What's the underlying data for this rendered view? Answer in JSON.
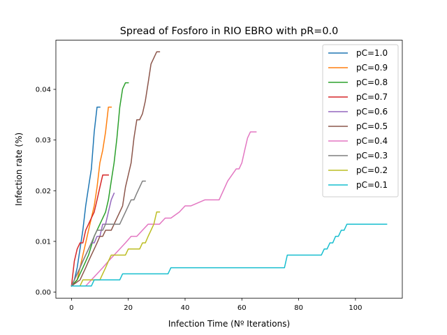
{
  "chart_data": {
    "type": "line",
    "title": "Spread of Fosforo in RIO EBRO with pR=0.0",
    "xlabel": "Infection Time (Nº Iterations)",
    "ylabel": "Infection rate (%)",
    "xlim": [
      -5.5,
      116.5
    ],
    "ylim": [
      -0.0012,
      0.0497
    ],
    "x_ticks": [
      0,
      20,
      40,
      60,
      80,
      100
    ],
    "x_tick_labels": [
      "0",
      "20",
      "40",
      "60",
      "80",
      "100"
    ],
    "y_ticks": [
      0.0,
      0.01,
      0.02,
      0.03,
      0.04
    ],
    "y_tick_labels": [
      "0.00",
      "0.01",
      "0.02",
      "0.03",
      "0.04"
    ],
    "grid": false,
    "legend_position": "top-right",
    "series": [
      {
        "name": "pC=1.0",
        "color": "#1f77b4",
        "x": [
          0,
          1,
          2,
          3,
          4,
          5,
          6,
          7,
          8,
          9,
          10
        ],
        "y": [
          0.0012,
          0.0024,
          0.0048,
          0.0085,
          0.0122,
          0.017,
          0.0207,
          0.0243,
          0.0316,
          0.0365,
          0.0365
        ]
      },
      {
        "name": "pC=0.9",
        "color": "#ff7f0e",
        "x": [
          0,
          2,
          3,
          4,
          5,
          6,
          7,
          8,
          9,
          10,
          11,
          12,
          13,
          14
        ],
        "y": [
          0.0012,
          0.0024,
          0.0048,
          0.0073,
          0.0097,
          0.0122,
          0.0146,
          0.017,
          0.0207,
          0.0255,
          0.028,
          0.0316,
          0.0365,
          0.0365
        ]
      },
      {
        "name": "pC=0.8",
        "color": "#2ca02c",
        "x": [
          0,
          2,
          4,
          6,
          8,
          10,
          12,
          13,
          14,
          15,
          16,
          17,
          18,
          19,
          20
        ],
        "y": [
          0.0012,
          0.0024,
          0.0048,
          0.0073,
          0.011,
          0.0134,
          0.0158,
          0.0182,
          0.0219,
          0.0255,
          0.0304,
          0.0365,
          0.0401,
          0.0413,
          0.0413
        ]
      },
      {
        "name": "pC=0.7",
        "color": "#d62728",
        "x": [
          0,
          1,
          2,
          3,
          4,
          5,
          6,
          7,
          8,
          9,
          10,
          11,
          12,
          13
        ],
        "y": [
          0.0012,
          0.0061,
          0.0085,
          0.0097,
          0.0097,
          0.0122,
          0.0134,
          0.0146,
          0.0158,
          0.0182,
          0.0207,
          0.0231,
          0.0231,
          0.0231
        ]
      },
      {
        "name": "pC=0.6",
        "color": "#9467bd",
        "x": [
          0,
          1,
          2,
          3,
          4,
          5,
          6,
          7,
          8,
          9,
          10,
          11,
          12,
          13,
          14,
          15
        ],
        "y": [
          0.0012,
          0.0024,
          0.0036,
          0.0048,
          0.0061,
          0.0073,
          0.0085,
          0.0097,
          0.0097,
          0.011,
          0.011,
          0.0134,
          0.0134,
          0.0158,
          0.0182,
          0.0195
        ]
      },
      {
        "name": "pC=0.5",
        "color": "#8c564b",
        "x": [
          0,
          3,
          4,
          5,
          6,
          7,
          8,
          9,
          10,
          11,
          12,
          13,
          14,
          15,
          16,
          17,
          18,
          19,
          20,
          21,
          22,
          23,
          24,
          25,
          26,
          27,
          28,
          29,
          30,
          31
        ],
        "y": [
          0.0012,
          0.0024,
          0.0036,
          0.0048,
          0.0061,
          0.0073,
          0.0085,
          0.0097,
          0.011,
          0.011,
          0.0122,
          0.0122,
          0.0122,
          0.0134,
          0.0146,
          0.0158,
          0.017,
          0.0207,
          0.0231,
          0.0255,
          0.0304,
          0.034,
          0.034,
          0.0352,
          0.0377,
          0.0413,
          0.045,
          0.0462,
          0.0474,
          0.0474
        ]
      },
      {
        "name": "pC=0.4",
        "color": "#e377c2",
        "x": [
          0,
          5,
          7,
          9,
          11,
          13,
          15,
          17,
          19,
          21,
          23,
          25,
          27,
          29,
          31,
          33,
          35,
          38,
          40,
          42,
          47,
          52,
          55,
          58,
          59,
          60,
          61,
          62,
          63,
          65
        ],
        "y": [
          0.0012,
          0.0012,
          0.0024,
          0.0036,
          0.0048,
          0.0061,
          0.0073,
          0.0085,
          0.0097,
          0.011,
          0.011,
          0.0122,
          0.0134,
          0.0134,
          0.0134,
          0.0146,
          0.0146,
          0.0158,
          0.017,
          0.017,
          0.0182,
          0.0182,
          0.0219,
          0.0243,
          0.0243,
          0.0255,
          0.028,
          0.0304,
          0.0316,
          0.0316
        ]
      },
      {
        "name": "pC=0.3",
        "color": "#7f7f7f",
        "x": [
          0,
          1,
          2,
          3,
          4,
          5,
          6,
          7,
          8,
          9,
          10,
          11,
          12,
          13,
          14,
          15,
          16,
          17,
          18,
          19,
          20,
          21,
          22,
          23,
          24,
          25,
          26
        ],
        "y": [
          0.0012,
          0.0024,
          0.0036,
          0.0048,
          0.0061,
          0.0073,
          0.0085,
          0.0097,
          0.011,
          0.0122,
          0.0122,
          0.0122,
          0.0134,
          0.0134,
          0.0134,
          0.0134,
          0.0134,
          0.0134,
          0.0146,
          0.0158,
          0.017,
          0.0182,
          0.0182,
          0.0195,
          0.0207,
          0.0219,
          0.0219
        ]
      },
      {
        "name": "pC=0.2",
        "color": "#bcbd22",
        "x": [
          0,
          3,
          4,
          5,
          6,
          7,
          8,
          9,
          10,
          11,
          12,
          13,
          14,
          15,
          16,
          17,
          18,
          19,
          20,
          21,
          22,
          23,
          24,
          25,
          26,
          27,
          28,
          29,
          30,
          31
        ],
        "y": [
          0.0012,
          0.0012,
          0.0024,
          0.0024,
          0.0024,
          0.0024,
          0.0024,
          0.0024,
          0.0024,
          0.0036,
          0.0048,
          0.0061,
          0.0073,
          0.0073,
          0.0073,
          0.0073,
          0.0073,
          0.0073,
          0.0085,
          0.0085,
          0.0085,
          0.0085,
          0.0085,
          0.0097,
          0.0097,
          0.011,
          0.0122,
          0.0134,
          0.0158,
          0.0158
        ]
      },
      {
        "name": "pC=0.1",
        "color": "#17becf",
        "x": [
          0,
          7,
          8,
          17,
          18,
          34,
          35,
          75,
          76,
          88,
          89,
          90,
          91,
          92,
          93,
          94,
          95,
          96,
          97,
          111
        ],
        "y": [
          0.0012,
          0.0012,
          0.0024,
          0.0024,
          0.0036,
          0.0036,
          0.0048,
          0.0048,
          0.0073,
          0.0073,
          0.0085,
          0.0085,
          0.0097,
          0.0097,
          0.011,
          0.011,
          0.0122,
          0.0122,
          0.0134,
          0.0134
        ]
      }
    ]
  }
}
